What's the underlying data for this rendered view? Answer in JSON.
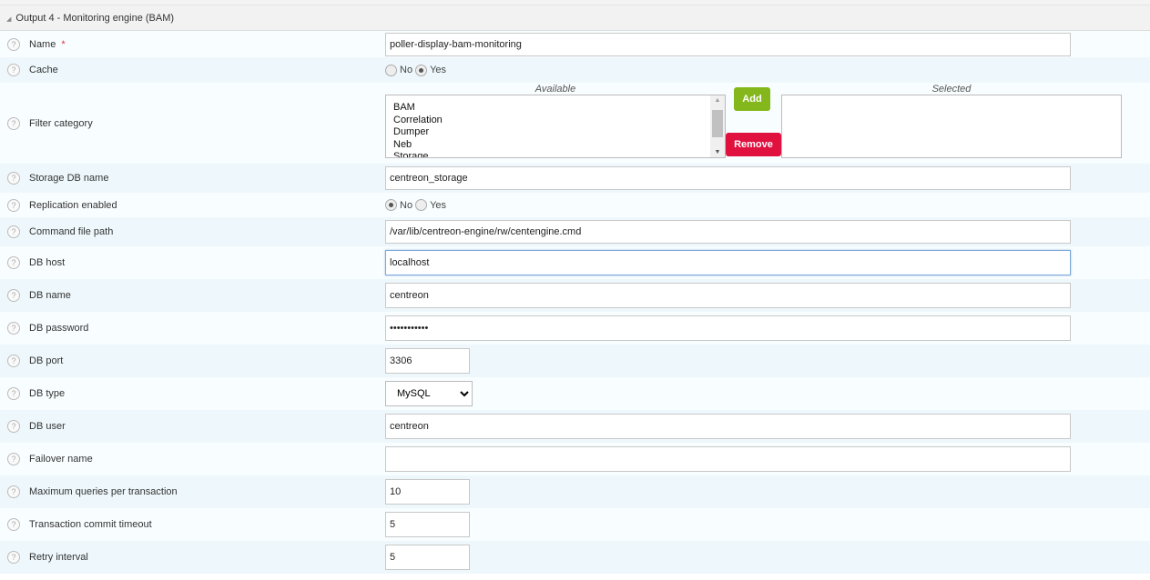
{
  "section": {
    "title": "Output 4 - Monitoring engine (BAM)"
  },
  "fields": {
    "name": {
      "label": "Name",
      "required": "*",
      "value": "poller-display-bam-monitoring"
    },
    "cache": {
      "label": "Cache",
      "options": [
        "No",
        "Yes"
      ],
      "selected": "Yes"
    },
    "filter": {
      "label": "Filter category",
      "available_caption": "Available",
      "selected_caption": "Selected",
      "available": [
        "BAM",
        "Correlation",
        "Dumper",
        "Neb",
        "Storage"
      ],
      "add": "Add",
      "remove": "Remove"
    },
    "storage_db": {
      "label": "Storage DB name",
      "value": "centreon_storage"
    },
    "replication": {
      "label": "Replication enabled",
      "options": [
        "No",
        "Yes"
      ],
      "selected": "No"
    },
    "command_file": {
      "label": "Command file path",
      "value": "/var/lib/centreon-engine/rw/centengine.cmd"
    },
    "db_host": {
      "label": "DB host",
      "value": "localhost"
    },
    "db_name": {
      "label": "DB name",
      "value": "centreon"
    },
    "db_password": {
      "label": "DB password",
      "value": "•••••••••••"
    },
    "db_port": {
      "label": "DB port",
      "value": "3306"
    },
    "db_type": {
      "label": "DB type",
      "value": "MySQL"
    },
    "db_user": {
      "label": "DB user",
      "value": "centreon"
    },
    "failover": {
      "label": "Failover name",
      "value": ""
    },
    "max_queries": {
      "label": "Maximum queries per transaction",
      "value": "10"
    },
    "commit_timeout": {
      "label": "Transaction commit timeout",
      "value": "5"
    },
    "retry": {
      "label": "Retry interval",
      "value": "5"
    }
  },
  "colors": {
    "add": "#84b71b",
    "remove": "#e0103f"
  }
}
